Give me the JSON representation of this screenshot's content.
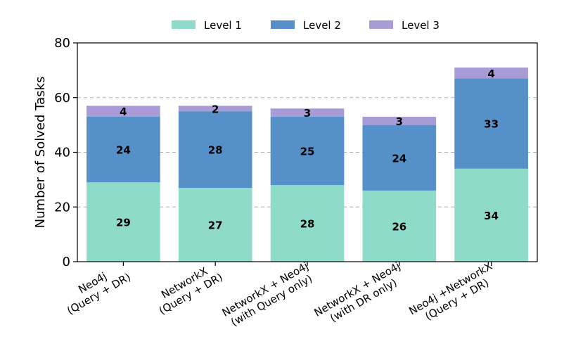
{
  "chart_data": {
    "type": "bar",
    "stacked": true,
    "categories": [
      [
        "Neo4j",
        "(Query + DR)"
      ],
      [
        "NetworkX",
        "(Query + DR)"
      ],
      [
        "NetworkX + Neo4j",
        "(with Query only)"
      ],
      [
        "NetworkX + Neo4j",
        "(with DR only)"
      ],
      [
        "Neo4j +NetworkX",
        "(Query + DR)"
      ]
    ],
    "series": [
      {
        "name": "Level 1",
        "color": "#8fdbc9",
        "values": [
          29,
          27,
          28,
          26,
          34
        ]
      },
      {
        "name": "Level 2",
        "color": "#5590c8",
        "values": [
          24,
          28,
          25,
          24,
          33
        ]
      },
      {
        "name": "Level 3",
        "color": "#a99bd5",
        "values": [
          4,
          2,
          3,
          3,
          4
        ]
      }
    ],
    "ylabel": "Number of Solved Tasks",
    "ylim": [
      0,
      80
    ],
    "yticks": [
      0,
      20,
      40,
      60,
      80
    ],
    "grid": "y-dashed",
    "legend_position": "top-center"
  }
}
